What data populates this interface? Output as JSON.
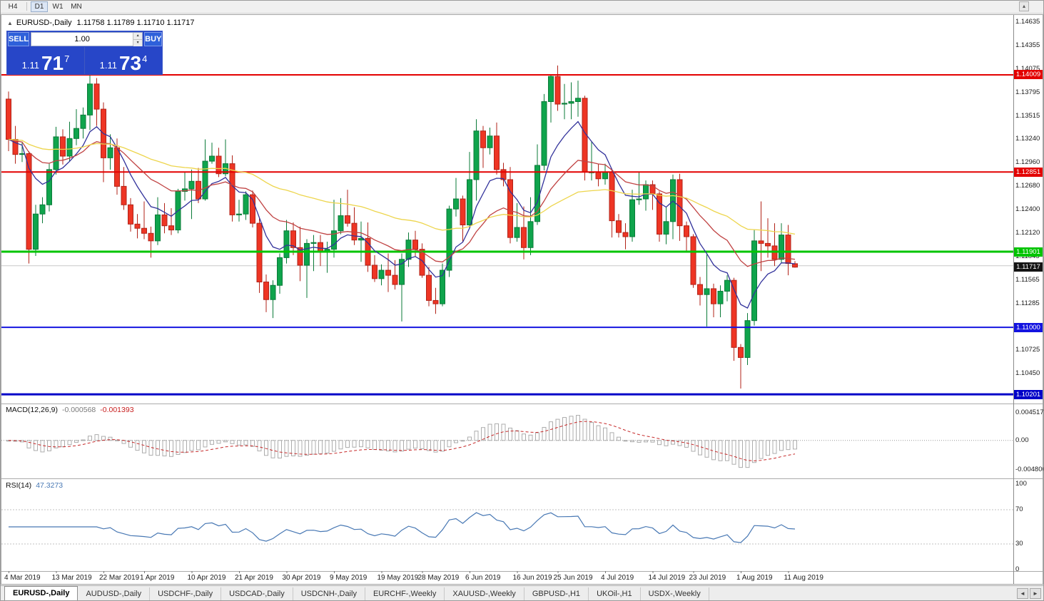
{
  "toolbar": {
    "buttons": [
      {
        "label": "H4",
        "active": false,
        "divider_after": true
      },
      {
        "label": "D1",
        "active": true,
        "divider_after": false
      },
      {
        "label": "W1",
        "active": false,
        "divider_after": false
      },
      {
        "label": "MN",
        "active": false,
        "divider_after": false
      }
    ],
    "scroll_icon": "▴"
  },
  "chart": {
    "collapse_icon": "▲",
    "symbol_title": "EURUSD-,Daily",
    "ohlc": "1.11758 1.11789 1.11710 1.11717"
  },
  "trade_panel": {
    "sell_label": "SELL",
    "buy_label": "BUY",
    "volume": "1.00",
    "spin_up": "▴",
    "spin_down": "▾",
    "sell_price": {
      "small": "1.11",
      "big": "71",
      "sup": "7"
    },
    "buy_price": {
      "small": "1.11",
      "big": "73",
      "sup": "4"
    }
  },
  "price_axis": {
    "ticks": [
      "1.14635",
      "1.14355",
      "1.14075",
      "1.13795",
      "1.13515",
      "1.13240",
      "1.12960",
      "1.12680",
      "1.12400",
      "1.12120",
      "1.11845",
      "1.11565",
      "1.11285",
      "1.11005",
      "1.10725",
      "1.10450",
      "1.10170"
    ]
  },
  "hlines": [
    {
      "value": 1.14009,
      "label": "1.14009",
      "color": "#E30000",
      "width": 2
    },
    {
      "value": 1.12851,
      "label": "1.12851",
      "color": "#E30000",
      "width": 2
    },
    {
      "value": 1.11901,
      "label": "1.11901",
      "color": "#00C400",
      "width": 3
    },
    {
      "value": 1.11,
      "label": "1.11000",
      "color": "#1414E0",
      "width": 2
    },
    {
      "value": 1.10201,
      "label": "1.10201",
      "color": "#0000C8",
      "width": 3
    }
  ],
  "current_price": {
    "value": 1.11717,
    "label": "1.11717",
    "color": "#141414"
  },
  "ask_line": {
    "value": 1.11734,
    "color": "#C9C9C9"
  },
  "chart_data": {
    "type": "candlestick",
    "symbol": "EURUSD",
    "timeframe": "Daily",
    "ylim": [
      1.101,
      1.1468
    ],
    "colors": {
      "bull": "#0FA44C",
      "bull_border": "#0B7B39",
      "bear": "#EE3524",
      "bear_border": "#B22318"
    },
    "moving_averages": [
      {
        "period": 8,
        "color": "#32329B"
      },
      {
        "period": 20,
        "color": "#C04343"
      },
      {
        "period": 55,
        "color": "#EDD54C"
      }
    ],
    "candles": [
      [
        1.1372,
        1.1381,
        1.131,
        1.1324
      ],
      [
        1.1324,
        1.134,
        1.1295,
        1.1306
      ],
      [
        1.1306,
        1.132,
        1.1297,
        1.1307
      ],
      [
        1.1307,
        1.131,
        1.1176,
        1.1193
      ],
      [
        1.1193,
        1.1246,
        1.1185,
        1.1235
      ],
      [
        1.1235,
        1.1255,
        1.1224,
        1.1246
      ],
      [
        1.1246,
        1.1295,
        1.1238,
        1.1288
      ],
      [
        1.1288,
        1.1339,
        1.1282,
        1.1327
      ],
      [
        1.1327,
        1.1336,
        1.1294,
        1.1304
      ],
      [
        1.1304,
        1.1345,
        1.1298,
        1.1325
      ],
      [
        1.1325,
        1.136,
        1.1317,
        1.1337
      ],
      [
        1.1337,
        1.1362,
        1.1325,
        1.1353
      ],
      [
        1.1353,
        1.14,
        1.1335,
        1.139
      ],
      [
        1.139,
        1.1397,
        1.134,
        1.136
      ],
      [
        1.136,
        1.1368,
        1.1273,
        1.1302
      ],
      [
        1.1302,
        1.133,
        1.1288,
        1.1314
      ],
      [
        1.1314,
        1.1325,
        1.1258,
        1.1268
      ],
      [
        1.1268,
        1.1291,
        1.124,
        1.1246
      ],
      [
        1.1246,
        1.1254,
        1.1214,
        1.1223
      ],
      [
        1.1223,
        1.1235,
        1.1206,
        1.1218
      ],
      [
        1.1218,
        1.125,
        1.1205,
        1.1212
      ],
      [
        1.1212,
        1.122,
        1.1183,
        1.1203
      ],
      [
        1.1203,
        1.1255,
        1.1198,
        1.1234
      ],
      [
        1.1234,
        1.1248,
        1.1212,
        1.1221
      ],
      [
        1.1221,
        1.1242,
        1.121,
        1.1216
      ],
      [
        1.1216,
        1.1265,
        1.1212,
        1.1262
      ],
      [
        1.1262,
        1.1285,
        1.1251,
        1.1265
      ],
      [
        1.1265,
        1.1288,
        1.1229,
        1.1274
      ],
      [
        1.1274,
        1.129,
        1.1248,
        1.1253
      ],
      [
        1.1253,
        1.1324,
        1.1251,
        1.1298
      ],
      [
        1.1298,
        1.132,
        1.1295,
        1.1304
      ],
      [
        1.1304,
        1.1314,
        1.1279,
        1.1283
      ],
      [
        1.1283,
        1.1324,
        1.128,
        1.1295
      ],
      [
        1.1295,
        1.1305,
        1.1226,
        1.1234
      ],
      [
        1.1234,
        1.1252,
        1.1226,
        1.1235
      ],
      [
        1.1235,
        1.1262,
        1.1228,
        1.1258
      ],
      [
        1.1258,
        1.1263,
        1.1219,
        1.1224
      ],
      [
        1.1224,
        1.123,
        1.1141,
        1.1154
      ],
      [
        1.1154,
        1.1163,
        1.1118,
        1.1133
      ],
      [
        1.1133,
        1.1156,
        1.1111,
        1.115
      ],
      [
        1.115,
        1.1188,
        1.114,
        1.1183
      ],
      [
        1.1183,
        1.1228,
        1.1176,
        1.1215
      ],
      [
        1.1215,
        1.1225,
        1.1186,
        1.1195
      ],
      [
        1.1195,
        1.122,
        1.1155,
        1.1174
      ],
      [
        1.1174,
        1.1205,
        1.1135,
        1.12
      ],
      [
        1.12,
        1.121,
        1.1167,
        1.1201
      ],
      [
        1.1201,
        1.121,
        1.1173,
        1.119
      ],
      [
        1.119,
        1.1202,
        1.1165,
        1.1193
      ],
      [
        1.1193,
        1.1252,
        1.1183,
        1.1215
      ],
      [
        1.1215,
        1.1254,
        1.1211,
        1.1233
      ],
      [
        1.1233,
        1.1264,
        1.122,
        1.1224
      ],
      [
        1.1224,
        1.1243,
        1.1198,
        1.1204
      ],
      [
        1.1204,
        1.1226,
        1.1178,
        1.1206
      ],
      [
        1.1206,
        1.1225,
        1.1166,
        1.1174
      ],
      [
        1.1174,
        1.1186,
        1.1154,
        1.1158
      ],
      [
        1.1158,
        1.1175,
        1.115,
        1.1168
      ],
      [
        1.1168,
        1.1188,
        1.1142,
        1.1162
      ],
      [
        1.1162,
        1.118,
        1.1145,
        1.1151
      ],
      [
        1.1151,
        1.1188,
        1.1107,
        1.1181
      ],
      [
        1.1181,
        1.1213,
        1.1172,
        1.1204
      ],
      [
        1.1204,
        1.1215,
        1.1184,
        1.1193
      ],
      [
        1.1193,
        1.12,
        1.1159,
        1.1162
      ],
      [
        1.1162,
        1.1172,
        1.1125,
        1.1132
      ],
      [
        1.1132,
        1.1147,
        1.1116,
        1.1128
      ],
      [
        1.1128,
        1.1176,
        1.1125,
        1.1168
      ],
      [
        1.1168,
        1.1245,
        1.116,
        1.1241
      ],
      [
        1.1241,
        1.1278,
        1.1232,
        1.1253
      ],
      [
        1.1253,
        1.1257,
        1.1201,
        1.1222
      ],
      [
        1.1222,
        1.1309,
        1.1219,
        1.1276
      ],
      [
        1.1276,
        1.1348,
        1.1251,
        1.1334
      ],
      [
        1.1334,
        1.134,
        1.129,
        1.1314
      ],
      [
        1.1314,
        1.1338,
        1.1306,
        1.1328
      ],
      [
        1.1328,
        1.1344,
        1.1282,
        1.1288
      ],
      [
        1.1288,
        1.1296,
        1.1268,
        1.1276
      ],
      [
        1.1276,
        1.1291,
        1.12,
        1.1207
      ],
      [
        1.1207,
        1.1248,
        1.1202,
        1.1219
      ],
      [
        1.1219,
        1.1244,
        1.1181,
        1.1195
      ],
      [
        1.1195,
        1.1255,
        1.1186,
        1.1226
      ],
      [
        1.1226,
        1.1318,
        1.1222,
        1.1293
      ],
      [
        1.1293,
        1.1378,
        1.1287,
        1.1369
      ],
      [
        1.1369,
        1.14,
        1.1344,
        1.1399
      ],
      [
        1.1399,
        1.1412,
        1.1358,
        1.1366
      ],
      [
        1.1366,
        1.139,
        1.1348,
        1.1367
      ],
      [
        1.1367,
        1.1392,
        1.1348,
        1.1369
      ],
      [
        1.1369,
        1.1394,
        1.1351,
        1.1373
      ],
      [
        1.1373,
        1.1376,
        1.1275,
        1.1285
      ],
      [
        1.1285,
        1.1322,
        1.1275,
        1.1285
      ],
      [
        1.1285,
        1.1295,
        1.1268,
        1.1277
      ],
      [
        1.1277,
        1.1295,
        1.127,
        1.1285
      ],
      [
        1.1285,
        1.1289,
        1.1207,
        1.1227
      ],
      [
        1.1227,
        1.1235,
        1.1207,
        1.1213
      ],
      [
        1.1213,
        1.1224,
        1.1193,
        1.1208
      ],
      [
        1.1208,
        1.1264,
        1.1202,
        1.1252
      ],
      [
        1.1252,
        1.1285,
        1.1246,
        1.1253
      ],
      [
        1.1253,
        1.1275,
        1.1239,
        1.127
      ],
      [
        1.127,
        1.1275,
        1.124,
        1.1259
      ],
      [
        1.1259,
        1.1262,
        1.1202,
        1.1211
      ],
      [
        1.1211,
        1.1243,
        1.1199,
        1.1226
      ],
      [
        1.1226,
        1.1282,
        1.1205,
        1.1276
      ],
      [
        1.1276,
        1.1283,
        1.1203,
        1.1221
      ],
      [
        1.1221,
        1.1226,
        1.119,
        1.1208
      ],
      [
        1.1208,
        1.1211,
        1.1147,
        1.1151
      ],
      [
        1.1151,
        1.116,
        1.1126,
        1.1139
      ],
      [
        1.1139,
        1.1187,
        1.1101,
        1.1146
      ],
      [
        1.1146,
        1.1152,
        1.1112,
        1.1128
      ],
      [
        1.1128,
        1.115,
        1.1112,
        1.1143
      ],
      [
        1.1143,
        1.1162,
        1.1131,
        1.1156
      ],
      [
        1.1156,
        1.1159,
        1.106,
        1.1076
      ],
      [
        1.1076,
        1.108,
        1.1027,
        1.1064
      ],
      [
        1.1064,
        1.1117,
        1.1055,
        1.1108
      ],
      [
        1.1108,
        1.1216,
        1.1102,
        1.1203
      ],
      [
        1.1203,
        1.125,
        1.1167,
        1.12
      ],
      [
        1.12,
        1.123,
        1.1183,
        1.1197
      ],
      [
        1.1197,
        1.1224,
        1.1173,
        1.1181
      ],
      [
        1.1181,
        1.1224,
        1.1177,
        1.121
      ],
      [
        1.121,
        1.1222,
        1.1162,
        1.1176
      ],
      [
        1.11758,
        1.11789,
        1.1171,
        1.11717
      ]
    ],
    "date_labels": [
      [
        0,
        "4 Mar 2019"
      ],
      [
        7,
        "13 Mar 2019"
      ],
      [
        14,
        "22 Mar 2019"
      ],
      [
        20,
        "1 Apr 2019"
      ],
      [
        27,
        "10 Apr 2019"
      ],
      [
        34,
        "21 Apr 2019"
      ],
      [
        41,
        "30 Apr 2019"
      ],
      [
        48,
        "9 May 2019"
      ],
      [
        55,
        "19 May 2019"
      ],
      [
        61,
        "28 May 2019"
      ],
      [
        68,
        "6 Jun 2019"
      ],
      [
        75,
        "16 Jun 2019"
      ],
      [
        81,
        "25 Jun 2019"
      ],
      [
        88,
        "4 Jul 2019"
      ],
      [
        95,
        "14 Jul 2019"
      ],
      [
        101,
        "23 Jul 2019"
      ],
      [
        108,
        "1 Aug 2019"
      ],
      [
        115,
        "11 Aug 2019"
      ]
    ]
  },
  "macd_panel": {
    "name": "MACD(12,26,9)",
    "value_main": "-0.000568",
    "value_signal": "-0.001393",
    "fast": 12,
    "slow": 26,
    "signal": 9,
    "axis": [
      "0.004517",
      "0.00",
      "-0.004806"
    ],
    "hist_color": "#ACACAC",
    "signal_color": "#C62828"
  },
  "rsi_panel": {
    "name": "RSI(14)",
    "value": "47.3273",
    "period": 14,
    "axis": [
      "100",
      "70",
      "30",
      "0"
    ],
    "levels": [
      70,
      30
    ],
    "color": "#4878B4"
  },
  "tabs": {
    "items": [
      {
        "label": "EURUSD-,Daily",
        "active": true
      },
      {
        "label": "AUDUSD-,Daily",
        "active": false
      },
      {
        "label": "USDCHF-,Daily",
        "active": false
      },
      {
        "label": "USDCAD-,Daily",
        "active": false
      },
      {
        "label": "USDCNH-,Daily",
        "active": false
      },
      {
        "label": "EURCHF-,Weekly",
        "active": false
      },
      {
        "label": "XAUUSD-,Weekly",
        "active": false
      },
      {
        "label": "GBPUSD-,H1",
        "active": false
      },
      {
        "label": "UKOil-,H1",
        "active": false
      },
      {
        "label": "USDX-,Weekly",
        "active": false
      }
    ],
    "left_arrow": "◄",
    "right_arrow": "►"
  }
}
